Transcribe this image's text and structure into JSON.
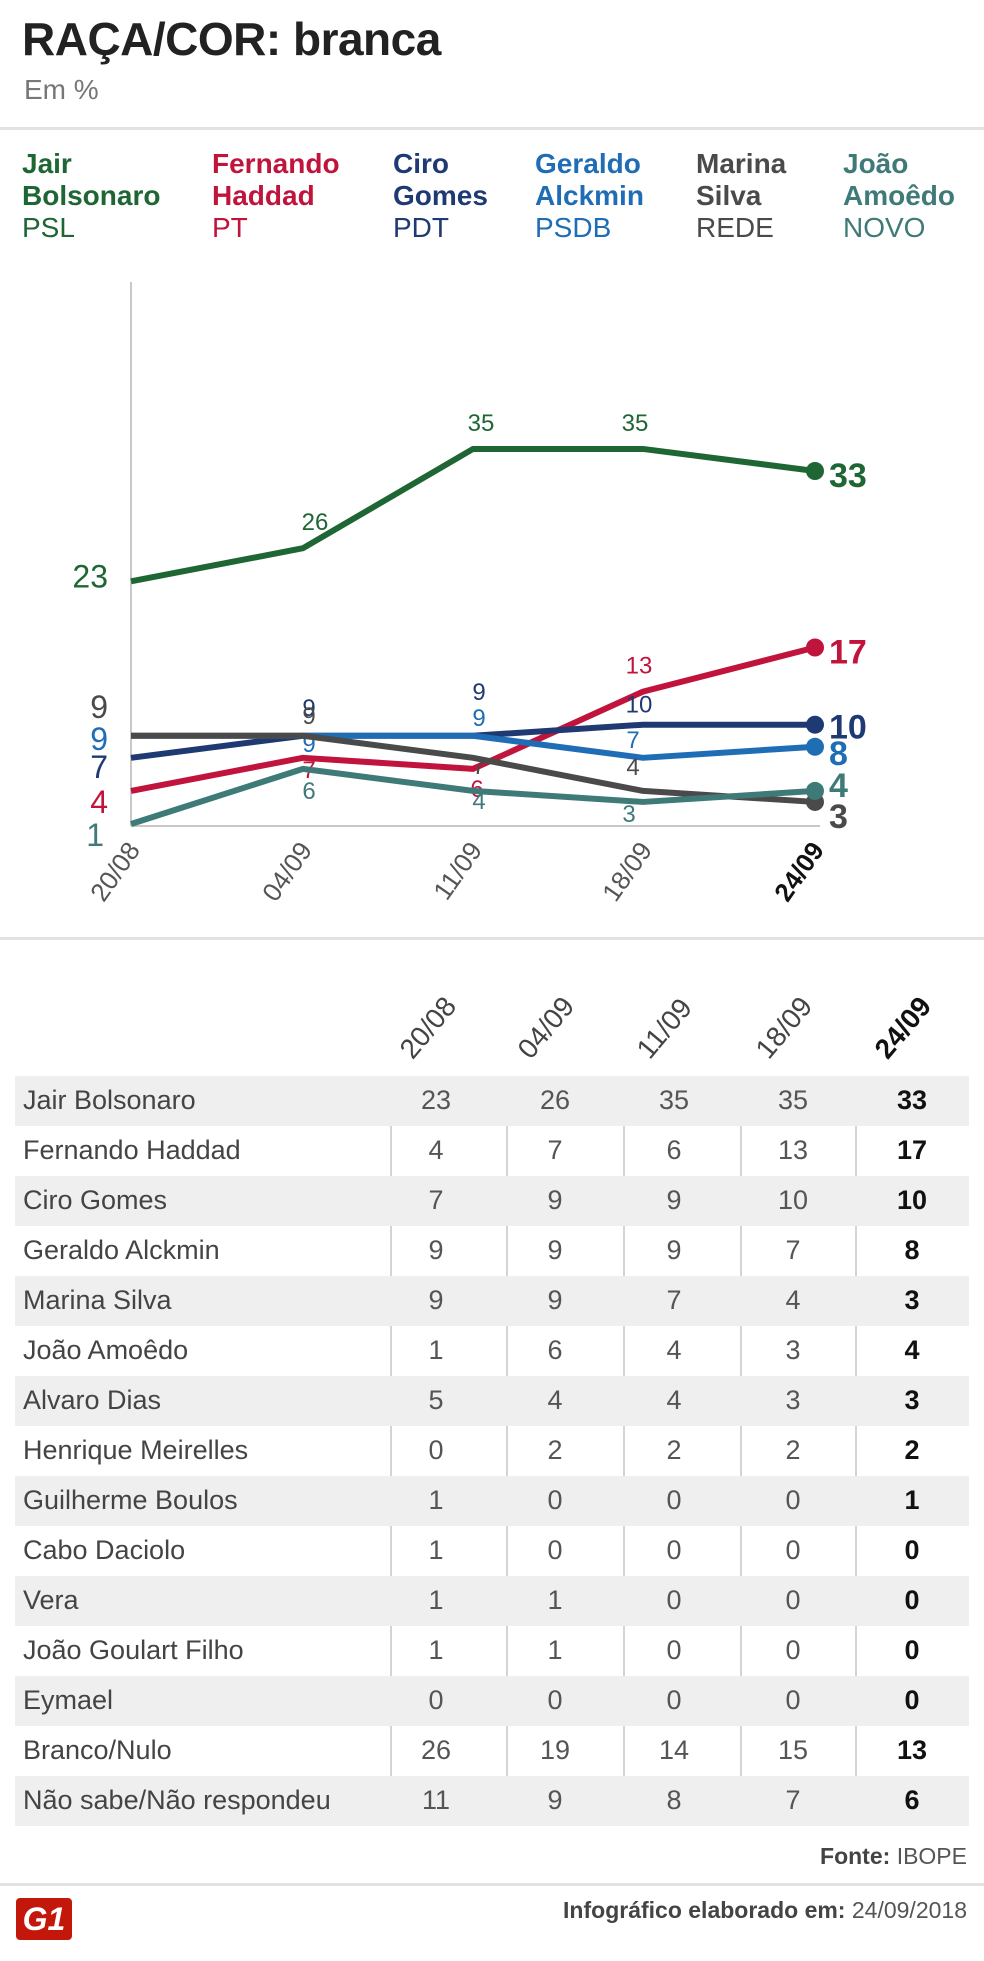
{
  "header": {
    "title": "RAÇA/COR: branca",
    "subtitle": "Em %"
  },
  "legend": [
    {
      "name": "Jair Bolsonaro",
      "line1": "Jair",
      "line2": "Bolsonaro",
      "party": "PSL",
      "color": "#1e6633"
    },
    {
      "name": "Fernando Haddad",
      "line1": "Fernando",
      "line2": "Haddad",
      "party": "PT",
      "color": "#c0143c"
    },
    {
      "name": "Ciro Gomes",
      "line1": "Ciro",
      "line2": "Gomes",
      "party": "PDT",
      "color": "#1f3a73"
    },
    {
      "name": "Geraldo Alckmin",
      "line1": "Geraldo",
      "line2": "Alckmin",
      "party": "PSDB",
      "color": "#1f6db5"
    },
    {
      "name": "Marina Silva",
      "line1": "Marina",
      "line2": "Silva",
      "party": "REDE",
      "color": "#4a4a4a"
    },
    {
      "name": "João Amoêdo",
      "line1": "João",
      "line2": "Amoêdo",
      "party": "NOVO",
      "color": "#3e7a78"
    }
  ],
  "chart_data": {
    "type": "line",
    "title": "RAÇA/COR: branca",
    "ylabel": "Em %",
    "categories": [
      "20/08",
      "04/09",
      "11/09",
      "18/09",
      "24/09"
    ],
    "ylim": [
      1,
      40
    ],
    "series": [
      {
        "name": "Jair Bolsonaro",
        "color": "#1e6633",
        "values": [
          23,
          26,
          35,
          35,
          33
        ]
      },
      {
        "name": "Fernando Haddad",
        "color": "#c0143c",
        "values": [
          4,
          7,
          6,
          13,
          17
        ]
      },
      {
        "name": "Ciro Gomes",
        "color": "#1f3a73",
        "values": [
          7,
          9,
          9,
          10,
          10
        ]
      },
      {
        "name": "Geraldo Alckmin",
        "color": "#1f6db5",
        "values": [
          9,
          9,
          9,
          7,
          8
        ]
      },
      {
        "name": "Marina Silva",
        "color": "#4a4a4a",
        "values": [
          9,
          9,
          7,
          4,
          3
        ]
      },
      {
        "name": "João Amoêdo",
        "color": "#3e7a78",
        "values": [
          1,
          6,
          4,
          3,
          4
        ]
      }
    ]
  },
  "table": {
    "columns": [
      "20/08",
      "04/09",
      "11/09",
      "18/09",
      "24/09"
    ],
    "rows": [
      {
        "name": "Jair Bolsonaro",
        "values": [
          "23",
          "26",
          "35",
          "35",
          "33"
        ]
      },
      {
        "name": "Fernando Haddad",
        "values": [
          "4",
          "7",
          "6",
          "13",
          "17"
        ]
      },
      {
        "name": "Ciro Gomes",
        "values": [
          "7",
          "9",
          "9",
          "10",
          "10"
        ]
      },
      {
        "name": "Geraldo Alckmin",
        "values": [
          "9",
          "9",
          "9",
          "7",
          "8"
        ]
      },
      {
        "name": "Marina Silva",
        "values": [
          "9",
          "9",
          "7",
          "4",
          "3"
        ]
      },
      {
        "name": "João Amoêdo",
        "values": [
          "1",
          "6",
          "4",
          "3",
          "4"
        ]
      },
      {
        "name": "Alvaro Dias",
        "values": [
          "5",
          "4",
          "4",
          "3",
          "3"
        ]
      },
      {
        "name": "Henrique Meirelles",
        "values": [
          "0",
          "2",
          "2",
          "2",
          "2"
        ]
      },
      {
        "name": "Guilherme Boulos",
        "values": [
          "1",
          "0",
          "0",
          "0",
          "1"
        ]
      },
      {
        "name": "Cabo Daciolo",
        "values": [
          "1",
          "0",
          "0",
          "0",
          "0"
        ]
      },
      {
        "name": "Vera",
        "values": [
          "1",
          "1",
          "0",
          "0",
          "0"
        ]
      },
      {
        "name": "João Goulart Filho",
        "values": [
          "1",
          "1",
          "0",
          "0",
          "0"
        ]
      },
      {
        "name": "Eymael",
        "values": [
          "0",
          "0",
          "0",
          "0",
          "0"
        ]
      },
      {
        "name": "Branco/Nulo",
        "values": [
          "26",
          "19",
          "14",
          "15",
          "13"
        ]
      },
      {
        "name": "Não sabe/Não respondeu",
        "values": [
          "11",
          "9",
          "8",
          "7",
          "6"
        ]
      }
    ]
  },
  "footer": {
    "source_label": "Fonte:",
    "source_value": "IBOPE",
    "made_label": "Infográfico elaborado em:",
    "made_value": "24/09/2018",
    "logo_text": "G1"
  }
}
